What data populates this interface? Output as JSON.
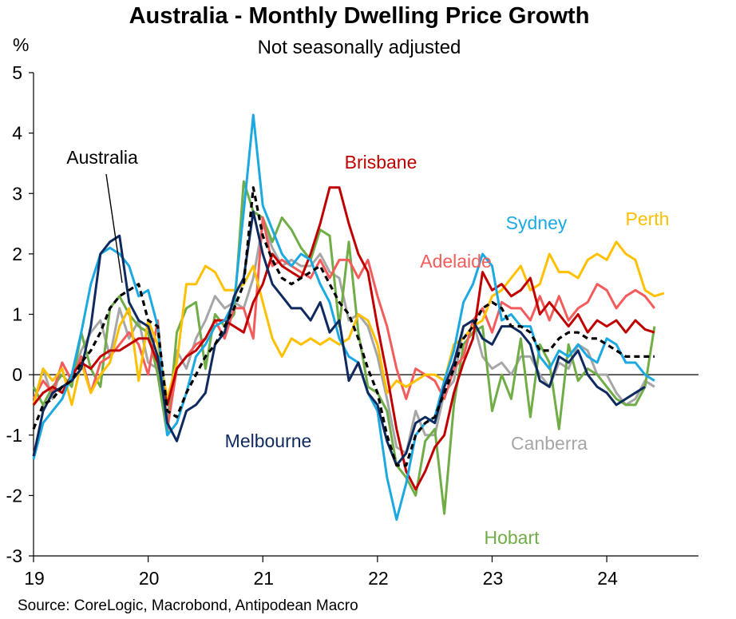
{
  "chart_data": {
    "type": "line",
    "title": "Australia - Monthly Dwelling Price Growth",
    "subtitle": "Not seasonally adjusted",
    "ylabel": "%",
    "xlabel": "",
    "ylim": [
      -3,
      5
    ],
    "yticks": [
      "5",
      "4",
      "3",
      "2",
      "1",
      "0",
      "-1",
      "-2",
      "-3"
    ],
    "xticks": [
      "19",
      "20",
      "21",
      "22",
      "23",
      "24"
    ],
    "x_start": 2019.0,
    "x_step": 0.0833333,
    "source": "Source: CoreLogic, Macrobond, Antipodean Macro",
    "series": [
      {
        "name": "Canberra",
        "color": "#a6a6a6",
        "dashed": false,
        "values": [
          -0.5,
          0.1,
          -0.4,
          0.2,
          -0.1,
          0.4,
          0.7,
          0.9,
          0.3,
          1.1,
          0.6,
          0.9,
          0.2,
          0.1,
          -0.7,
          0.4,
          0.1,
          0.6,
          0.9,
          1.3,
          1.1,
          1.2,
          1.1,
          1.6,
          2.5,
          2.1,
          1.8,
          1.9,
          1.8,
          1.8,
          2.0,
          1.7,
          1.6,
          0.9,
          1.0,
          0.8,
          0.3,
          -0.4,
          -1.2,
          -1.3,
          -0.6,
          -1.0,
          -1.0,
          -0.3,
          -0.1,
          0.8,
          0.9,
          0.3,
          0.1,
          0.2,
          0.0,
          0.3,
          0.3,
          0.0,
          -0.2,
          0.2,
          0.1,
          0.5,
          0.4,
          0.0,
          0.0,
          -0.3,
          -0.5,
          -0.4,
          -0.1,
          -0.2
        ]
      },
      {
        "name": "Hobart",
        "color": "#70ad47",
        "dashed": false,
        "values": [
          -0.2,
          -0.5,
          -0.2,
          0.0,
          -0.2,
          0.7,
          0.1,
          -0.2,
          1.1,
          1.3,
          1.0,
          0.8,
          0.7,
          0.0,
          -1.0,
          0.7,
          1.1,
          1.2,
          0.1,
          1.0,
          0.8,
          1.0,
          3.2,
          2.7,
          2.6,
          2.2,
          2.6,
          2.4,
          2.1,
          1.9,
          2.4,
          2.3,
          0.8,
          2.2,
          0.7,
          -0.2,
          -0.3,
          -0.6,
          -1.5,
          -1.7,
          -2.0,
          -1.1,
          -0.9,
          -2.3,
          -0.5,
          0.5,
          0.7,
          0.8,
          -0.6,
          0.0,
          -0.4,
          0.6,
          -0.7,
          0.5,
          0.2,
          -0.9,
          0.5,
          -0.1,
          0.1,
          0.0,
          -0.2,
          -0.4,
          -0.5,
          -0.5,
          -0.2,
          0.8
        ]
      },
      {
        "name": "Adelaide",
        "color": "#f45c5c",
        "dashed": false,
        "values": [
          -0.4,
          -0.1,
          -0.3,
          0.2,
          -0.1,
          0.3,
          -0.3,
          0.2,
          0.3,
          0.5,
          0.7,
          0.5,
          0.0,
          0.9,
          -0.9,
          0.1,
          0.3,
          0.5,
          0.6,
          0.9,
          0.6,
          1.1,
          1.1,
          0.6,
          2.6,
          1.8,
          1.9,
          1.8,
          1.7,
          1.6,
          1.9,
          1.6,
          1.9,
          1.9,
          1.6,
          1.9,
          1.3,
          0.8,
          0.1,
          -0.4,
          0.1,
          0.0,
          -0.1,
          -0.4,
          0.1,
          0.3,
          0.9,
          1.1,
          0.7,
          1.2,
          1.1,
          1.1,
          0.9,
          1.3,
          0.9,
          1.3,
          0.9,
          1.1,
          1.2,
          1.5,
          1.4,
          1.1,
          1.3,
          1.4,
          1.3,
          1.1
        ]
      },
      {
        "name": "Perth",
        "color": "#ffc000",
        "dashed": false,
        "values": [
          -0.5,
          0.1,
          -0.1,
          0.1,
          -0.5,
          0.2,
          -0.3,
          0.0,
          0.2,
          0.8,
          1.1,
          -0.1,
          0.9,
          0.5,
          -0.4,
          0.2,
          1.5,
          1.5,
          1.8,
          1.7,
          1.4,
          1.4,
          1.5,
          1.8,
          1.2,
          0.6,
          0.3,
          0.6,
          0.5,
          0.6,
          0.5,
          0.6,
          0.5,
          0.6,
          1.0,
          0.9,
          0.5,
          -0.3,
          -0.1,
          -0.2,
          -0.1,
          0.0,
          0.0,
          -0.1,
          0.5,
          0.6,
          0.8,
          0.9,
          1.3,
          1.4,
          1.6,
          1.8,
          1.4,
          1.5,
          2.0,
          1.7,
          1.7,
          1.6,
          1.9,
          2.0,
          1.9,
          2.2,
          2.0,
          1.9,
          1.4,
          1.3,
          1.35
        ]
      },
      {
        "name": "Brisbane",
        "color": "#c00000",
        "dashed": false,
        "values": [
          -0.5,
          -0.3,
          -0.2,
          -0.3,
          0.0,
          0.2,
          0.1,
          0.3,
          0.4,
          0.4,
          0.5,
          0.6,
          0.6,
          0.2,
          -0.5,
          0.1,
          0.3,
          0.4,
          0.6,
          0.9,
          0.9,
          0.8,
          0.7,
          1.2,
          1.5,
          2.0,
          1.8,
          1.7,
          1.6,
          2.0,
          2.5,
          3.1,
          3.1,
          2.5,
          2.0,
          1.7,
          0.8,
          0.0,
          -0.9,
          -1.6,
          -1.9,
          -1.6,
          -1.2,
          -1.0,
          -0.3,
          0.2,
          0.6,
          1.7,
          1.4,
          1.5,
          1.3,
          1.4,
          1.6,
          1.0,
          1.2,
          1.0,
          0.8,
          1.0,
          0.7,
          0.9,
          0.8,
          0.9,
          0.7,
          0.9,
          0.75,
          0.7
        ]
      },
      {
        "name": "Sydney",
        "color": "#1ca9e1",
        "dashed": false,
        "values": [
          -1.4,
          -0.8,
          -0.6,
          -0.4,
          0.0,
          0.7,
          1.5,
          2.0,
          2.1,
          2.0,
          1.8,
          1.3,
          1.4,
          0.8,
          -1.0,
          -0.8,
          -0.3,
          0.3,
          0.5,
          0.8,
          0.9,
          1.2,
          2.7,
          4.3,
          2.8,
          2.4,
          2.0,
          1.8,
          2.0,
          1.9,
          1.5,
          1.2,
          0.6,
          0.3,
          0.2,
          -0.3,
          -0.6,
          -1.7,
          -2.4,
          -1.8,
          -1.0,
          -0.8,
          -0.7,
          -0.1,
          0.4,
          1.2,
          1.5,
          2.0,
          1.8,
          0.9,
          1.0,
          0.8,
          0.8,
          0.3,
          0.1,
          0.4,
          0.3,
          0.5,
          0.3,
          0.2,
          0.6,
          0.5,
          0.2,
          0.2,
          0.0,
          -0.1
        ]
      },
      {
        "name": "Melbourne",
        "color": "#0f2a5e",
        "dashed": false,
        "values": [
          -1.35,
          -0.6,
          -0.3,
          -0.2,
          -0.1,
          0.1,
          0.8,
          2.0,
          2.2,
          2.3,
          1.2,
          0.9,
          0.8,
          0.3,
          -0.8,
          -1.1,
          -0.6,
          -0.5,
          -0.3,
          0.5,
          0.7,
          1.3,
          1.6,
          2.7,
          2.0,
          1.5,
          1.3,
          1.1,
          1.1,
          0.9,
          1.2,
          0.7,
          0.9,
          -0.1,
          0.2,
          -0.3,
          -0.5,
          -1.1,
          -1.5,
          -1.3,
          -0.8,
          -0.7,
          -0.8,
          -0.2,
          0.2,
          0.8,
          0.9,
          0.6,
          0.5,
          0.8,
          0.8,
          0.7,
          0.5,
          -0.1,
          -0.2,
          0.3,
          0.2,
          0.4,
          0.0,
          -0.2,
          -0.3,
          -0.5,
          -0.4,
          -0.3,
          -0.2
        ]
      },
      {
        "name": "Australia",
        "color": "#000000",
        "dashed": true,
        "values": [
          -0.9,
          -0.5,
          -0.4,
          -0.2,
          -0.1,
          0.2,
          0.4,
          0.7,
          1.1,
          1.3,
          1.4,
          1.5,
          0.9,
          0.8,
          -0.6,
          -0.7,
          -0.3,
          0.0,
          0.3,
          0.5,
          0.8,
          1.1,
          1.5,
          3.1,
          2.3,
          1.9,
          1.6,
          1.5,
          1.6,
          1.7,
          1.8,
          1.5,
          1.2,
          1.0,
          0.6,
          0.1,
          -0.3,
          -1.0,
          -1.5,
          -1.5,
          -1.0,
          -0.8,
          -0.7,
          -0.3,
          0.1,
          0.6,
          0.8,
          1.1,
          1.2,
          1.1,
          0.8,
          0.8,
          0.7,
          0.4,
          0.4,
          0.6,
          0.7,
          0.7,
          0.6,
          0.6,
          0.5,
          0.4,
          0.3,
          0.3,
          0.3,
          0.3
        ]
      }
    ],
    "annotations": [
      {
        "series": "Australia",
        "text": "Australia",
        "color": "#000000"
      },
      {
        "series": "Brisbane",
        "text": "Brisbane",
        "color": "#c00000"
      },
      {
        "series": "Sydney",
        "text": "Sydney",
        "color": "#1ca9e1"
      },
      {
        "series": "Perth",
        "text": "Perth",
        "color": "#ffc000"
      },
      {
        "series": "Adelaide",
        "text": "Adelaide",
        "color": "#f45c5c"
      },
      {
        "series": "Melbourne",
        "text": "Melbourne",
        "color": "#0f2a5e"
      },
      {
        "series": "Canberra",
        "text": "Canberra",
        "color": "#a6a6a6"
      },
      {
        "series": "Hobart",
        "text": "Hobart",
        "color": "#70ad47"
      }
    ]
  }
}
